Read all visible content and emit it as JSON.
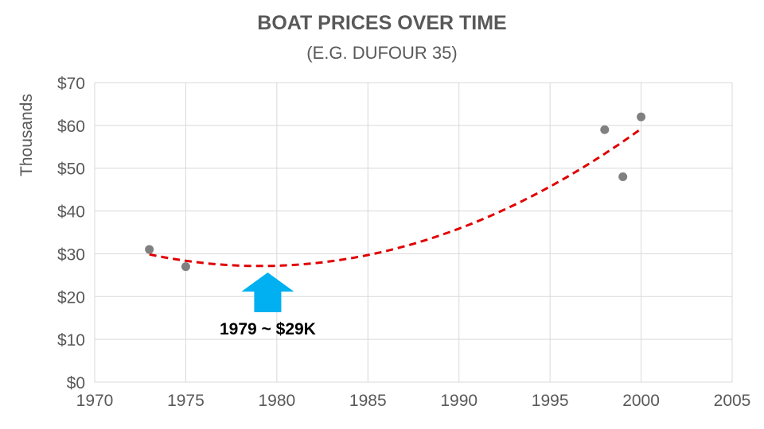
{
  "chart_data": {
    "type": "scatter",
    "title": "BOAT PRICES OVER TIME",
    "subtitle": "(E.G. DUFOUR 35)",
    "xlabel": "",
    "ylabel": "Thousands",
    "xlim": [
      1970,
      2005
    ],
    "ylim": [
      0,
      70
    ],
    "x_ticks": [
      "1970",
      "1975",
      "1980",
      "1985",
      "1990",
      "1995",
      "2000",
      "2005"
    ],
    "y_ticks": [
      "$0",
      "$10",
      "$20",
      "$30",
      "$40",
      "$50",
      "$60",
      "$70"
    ],
    "grid": true,
    "points": [
      {
        "x": 1973,
        "y": 31
      },
      {
        "x": 1975,
        "y": 27
      },
      {
        "x": 1998,
        "y": 59
      },
      {
        "x": 1999,
        "y": 48
      },
      {
        "x": 2000,
        "y": 62
      }
    ],
    "trendline": {
      "type": "polynomial",
      "order": 2,
      "color": "#E00000",
      "style": "dashed"
    },
    "point_color": "#808080",
    "annotation": {
      "text": "1979 ~ $29K",
      "x": 1979.5,
      "arrow_color": "#00B0F0"
    }
  }
}
